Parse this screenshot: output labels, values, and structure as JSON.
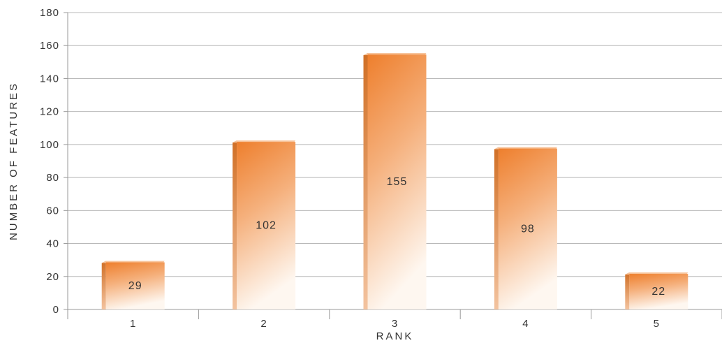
{
  "chart_data": {
    "type": "bar",
    "categories": [
      "1",
      "2",
      "3",
      "4",
      "5"
    ],
    "values": [
      29,
      102,
      155,
      98,
      22
    ],
    "data_labels": [
      "29",
      "102",
      "155",
      "98",
      "22"
    ],
    "title": "",
    "xlabel": "RANK",
    "ylabel": "NUMBER OF FEATURES",
    "ylim": [
      0,
      180
    ],
    "yticks": [
      "0",
      "20",
      "40",
      "60",
      "80",
      "100",
      "120",
      "140",
      "160",
      "180"
    ],
    "grid": true,
    "legend": "none",
    "colors": {
      "bar_top": "#ee7f2d",
      "bar_bottom": "#fdf3ea",
      "bar_side": "#d98a50",
      "grid": "#b8b8b8",
      "axis": "#999999"
    }
  }
}
